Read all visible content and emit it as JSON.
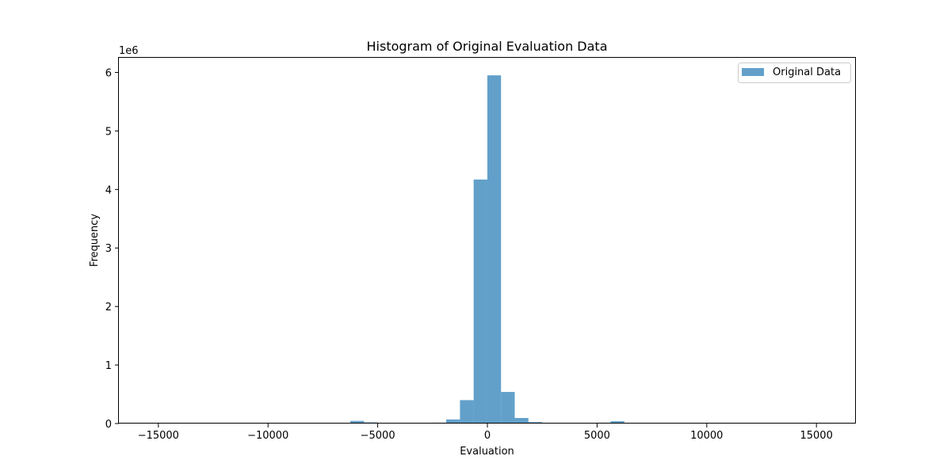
{
  "chart_data": {
    "type": "bar",
    "title": "Histogram of Original Evaluation Data",
    "xlabel": "Evaluation",
    "ylabel": "Frequency",
    "y_offset_label": "1e6",
    "xlim": [
      -16800,
      16800
    ],
    "ylim": [
      0,
      6250000
    ],
    "x_ticks": [
      -15000,
      -10000,
      -5000,
      0,
      5000,
      10000,
      15000
    ],
    "x_tick_labels": [
      "−15000",
      "−10000",
      "−5000",
      "0",
      "5000",
      "10000",
      "15000"
    ],
    "y_ticks": [
      0,
      1000000,
      2000000,
      3000000,
      4000000,
      5000000,
      6000000
    ],
    "y_tick_labels": [
      "0",
      "1",
      "2",
      "3",
      "4",
      "5",
      "6"
    ],
    "grid": false,
    "legend": {
      "position": "top-right",
      "entries": [
        "Original Data"
      ]
    },
    "series": [
      {
        "name": "Original Data",
        "color": "#1f77b4",
        "alpha": 0.7,
        "bin_edges": [
          -15615,
          -14990,
          -14366,
          -13741,
          -13117,
          -12492,
          -11868,
          -11243,
          -10619,
          -9994,
          -9370,
          -8745,
          -8121,
          -7496,
          -6872,
          -6247,
          -5623,
          -4998,
          -4374,
          -3749,
          -3125,
          -2500,
          -1876,
          -1251,
          -627,
          -2,
          622,
          1247,
          1871,
          2496,
          3120,
          3745,
          4369,
          4994,
          5618,
          6243,
          6867,
          7492,
          8116,
          8741,
          9365,
          9990,
          10614,
          11239,
          11863,
          12488,
          13112,
          13737,
          14361,
          14986,
          15610
        ],
        "values": [
          0,
          0,
          0,
          0,
          0,
          0,
          0,
          0,
          0,
          0,
          0,
          0,
          0,
          1000,
          10000,
          45000,
          20000,
          8000,
          1000,
          2000,
          10000,
          15000,
          70000,
          400000,
          4170000,
          5950000,
          540000,
          95000,
          25000,
          10000,
          2000,
          1000,
          8000,
          15000,
          40000,
          12000,
          1000,
          0,
          0,
          0,
          0,
          0,
          0,
          0,
          0,
          0,
          0,
          0,
          0,
          0
        ]
      }
    ]
  }
}
